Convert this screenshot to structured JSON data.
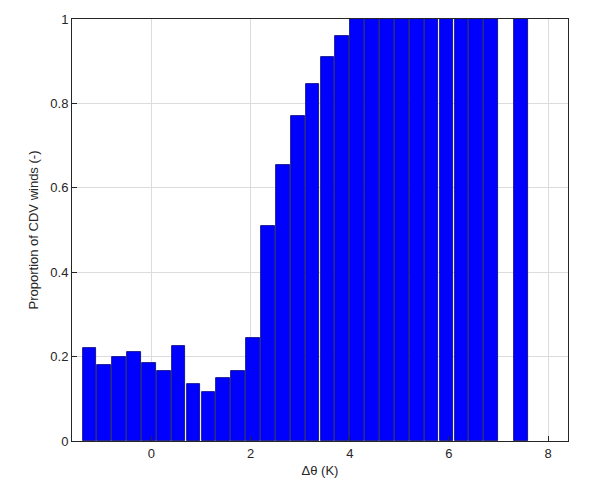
{
  "chart_data": {
    "type": "bar",
    "x_label": "Δθ (K)",
    "y_label": "Proportion of CDV winds (-)",
    "bins": [
      -1.4,
      -1.1,
      -0.8,
      -0.5,
      -0.2,
      0.1,
      0.4,
      0.7,
      1.0,
      1.3,
      1.6,
      1.9,
      2.2,
      2.5,
      2.8,
      3.1,
      3.4,
      3.7,
      4.0,
      4.3,
      4.6,
      4.9,
      5.2,
      5.5,
      5.8,
      6.1,
      6.4,
      6.7,
      7.0,
      7.3,
      7.6
    ],
    "values": [
      0.22,
      0.18,
      0.2,
      0.21,
      0.185,
      0.165,
      0.225,
      0.135,
      0.115,
      0.15,
      0.165,
      0.245,
      0.51,
      0.655,
      0.77,
      0.845,
      0.91,
      0.96,
      1,
      1,
      1,
      1,
      1,
      1,
      1,
      1,
      1,
      1,
      null,
      1
    ],
    "color": "#0000ff",
    "xlim": [
      -1.6,
      8.4
    ],
    "xticks": [
      0,
      2,
      4,
      6,
      8
    ],
    "ylim": [
      0,
      1
    ],
    "yticks": [
      0,
      0.2,
      0.4,
      0.6,
      0.8,
      1
    ],
    "grid": true
  }
}
